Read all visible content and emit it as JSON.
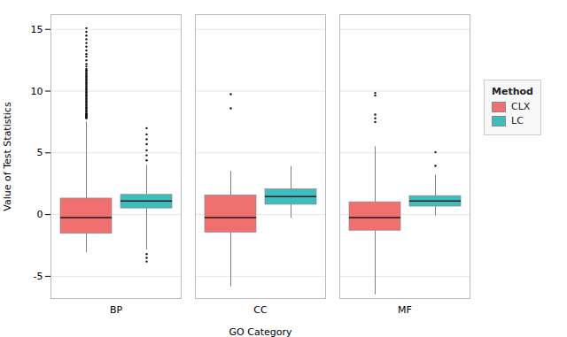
{
  "chart_data": {
    "type": "box",
    "xlabel": "GO Category",
    "ylabel": "Value of Test Statistics",
    "legend_title": "Method",
    "legend": "right",
    "grid": true,
    "categories": [
      "BP",
      "CC",
      "MF"
    ],
    "ylim": [
      -6.8,
      16.2
    ],
    "yticks": [
      -5,
      0,
      5,
      10,
      15
    ],
    "median_color": "#1A1A1A",
    "whisker_color": "#808080",
    "flier_color": "#111111",
    "series": [
      {
        "name": "CLX",
        "color": "#F07070",
        "values": [
          {
            "q1": -1.55,
            "median": -0.25,
            "q3": 1.3,
            "whislo": -3.1,
            "whishi": 7.5,
            "fliers_high": [
              7.8,
              7.85,
              7.9,
              7.95,
              8.0,
              8.05,
              8.1,
              8.15,
              8.2,
              8.3,
              8.4,
              8.5,
              8.6,
              8.7,
              8.8,
              8.9,
              9.0,
              9.1,
              9.2,
              9.3,
              9.4,
              9.5,
              9.6,
              9.7,
              9.8,
              9.9,
              10.0,
              10.1,
              10.2,
              10.3,
              10.4,
              10.5,
              10.6,
              10.7,
              10.8,
              10.9,
              11.0,
              11.1,
              11.2,
              11.3,
              11.4,
              11.5,
              11.6,
              11.7,
              11.8,
              12.0,
              12.2,
              12.5,
              12.8,
              13.0,
              13.3,
              13.6,
              13.9,
              14.2,
              14.5,
              14.8,
              15.1
            ],
            "fliers_low": []
          },
          {
            "q1": -1.45,
            "median": -0.25,
            "q3": 1.55,
            "whislo": -5.85,
            "whishi": 3.5,
            "fliers_high": [
              9.75,
              8.6
            ],
            "fliers_low": []
          },
          {
            "q1": -1.3,
            "median": -0.25,
            "q3": 1.0,
            "whislo": -6.5,
            "whishi": 5.5,
            "fliers_high": [
              7.5,
              7.8,
              8.1,
              9.65,
              9.85
            ],
            "fliers_low": []
          }
        ]
      },
      {
        "name": "LC",
        "color": "#3DBDBD",
        "values": [
          {
            "q1": 0.5,
            "median": 1.1,
            "q3": 1.6,
            "whislo": -2.85,
            "whishi": 4.0,
            "fliers_high": [
              4.4,
              4.8,
              5.2,
              5.7,
              6.1,
              6.5,
              7.0
            ],
            "fliers_low": [
              -3.2,
              -3.5,
              -3.8
            ]
          },
          {
            "q1": 0.8,
            "median": 1.45,
            "q3": 2.05,
            "whislo": -0.3,
            "whishi": 3.9,
            "fliers_high": [],
            "fliers_low": []
          },
          {
            "q1": 0.65,
            "median": 1.1,
            "q3": 1.5,
            "whislo": -0.1,
            "whishi": 3.2,
            "fliers_high": [
              3.95,
              5.05
            ],
            "fliers_low": []
          }
        ]
      }
    ]
  }
}
